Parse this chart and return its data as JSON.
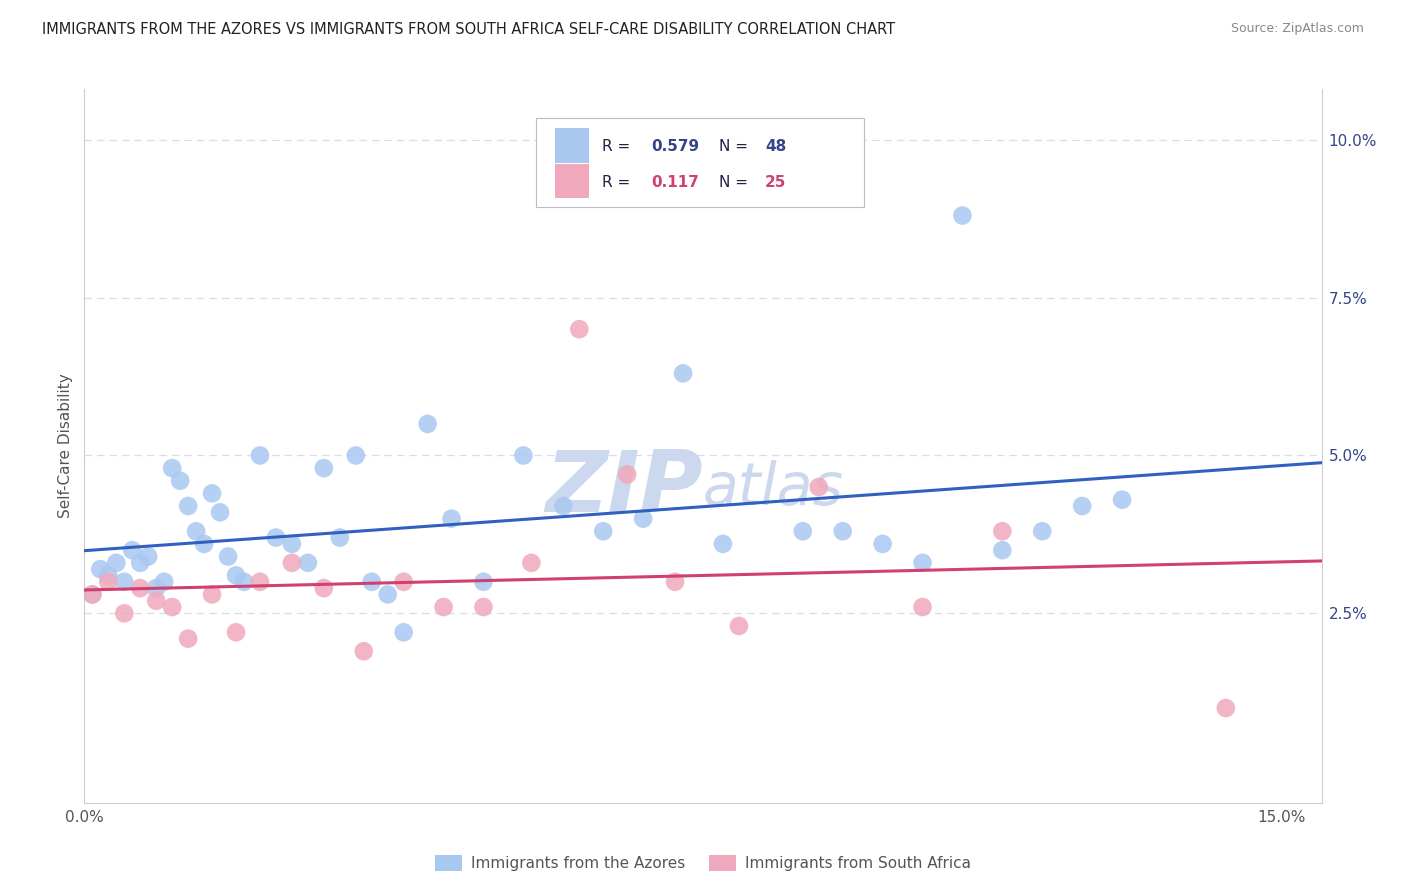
{
  "title": "IMMIGRANTS FROM THE AZORES VS IMMIGRANTS FROM SOUTH AFRICA SELF-CARE DISABILITY CORRELATION CHART",
  "source": "Source: ZipAtlas.com",
  "ylabel": "Self-Care Disability",
  "xlim": [
    0.0,
    0.155
  ],
  "ylim": [
    -0.005,
    0.108
  ],
  "yticks_right": [
    0.025,
    0.05,
    0.075,
    0.1
  ],
  "ytick_labels_right": [
    "2.5%",
    "5.0%",
    "7.5%",
    "10.0%"
  ],
  "r_blue": "0.579",
  "n_blue": "48",
  "r_pink": "0.117",
  "n_pink": "25",
  "blue_scatter_color": "#a8c8f0",
  "pink_scatter_color": "#f0a8bc",
  "blue_line_color": "#3060c0",
  "pink_line_color": "#d04070",
  "watermark_color": "#ccd8ee",
  "legend_text_color": "#334488",
  "grid_color": "#d8dde8",
  "spine_color": "#cccccc",
  "title_color": "#222222",
  "source_color": "#888888",
  "ylabel_color": "#555555",
  "azores_x": [
    0.001,
    0.002,
    0.003,
    0.004,
    0.005,
    0.006,
    0.007,
    0.008,
    0.009,
    0.01,
    0.011,
    0.012,
    0.013,
    0.014,
    0.015,
    0.016,
    0.017,
    0.018,
    0.019,
    0.02,
    0.022,
    0.024,
    0.026,
    0.028,
    0.03,
    0.032,
    0.034,
    0.036,
    0.038,
    0.04,
    0.043,
    0.046,
    0.05,
    0.055,
    0.06,
    0.065,
    0.07,
    0.075,
    0.08,
    0.09,
    0.095,
    0.1,
    0.105,
    0.11,
    0.115,
    0.12,
    0.125,
    0.13
  ],
  "azores_y": [
    0.028,
    0.032,
    0.031,
    0.033,
    0.03,
    0.035,
    0.033,
    0.034,
    0.029,
    0.03,
    0.048,
    0.046,
    0.042,
    0.038,
    0.036,
    0.044,
    0.041,
    0.034,
    0.031,
    0.03,
    0.05,
    0.037,
    0.036,
    0.033,
    0.048,
    0.037,
    0.05,
    0.03,
    0.028,
    0.022,
    0.055,
    0.04,
    0.03,
    0.05,
    0.042,
    0.038,
    0.04,
    0.063,
    0.036,
    0.038,
    0.038,
    0.036,
    0.033,
    0.088,
    0.035,
    0.038,
    0.042,
    0.043
  ],
  "sa_x": [
    0.001,
    0.003,
    0.005,
    0.007,
    0.009,
    0.011,
    0.013,
    0.016,
    0.019,
    0.022,
    0.026,
    0.03,
    0.035,
    0.04,
    0.045,
    0.05,
    0.056,
    0.062,
    0.068,
    0.074,
    0.082,
    0.092,
    0.105,
    0.115,
    0.143
  ],
  "sa_y": [
    0.028,
    0.03,
    0.025,
    0.029,
    0.027,
    0.026,
    0.021,
    0.028,
    0.022,
    0.03,
    0.033,
    0.029,
    0.019,
    0.03,
    0.026,
    0.026,
    0.033,
    0.07,
    0.047,
    0.03,
    0.023,
    0.045,
    0.026,
    0.038,
    0.01
  ]
}
